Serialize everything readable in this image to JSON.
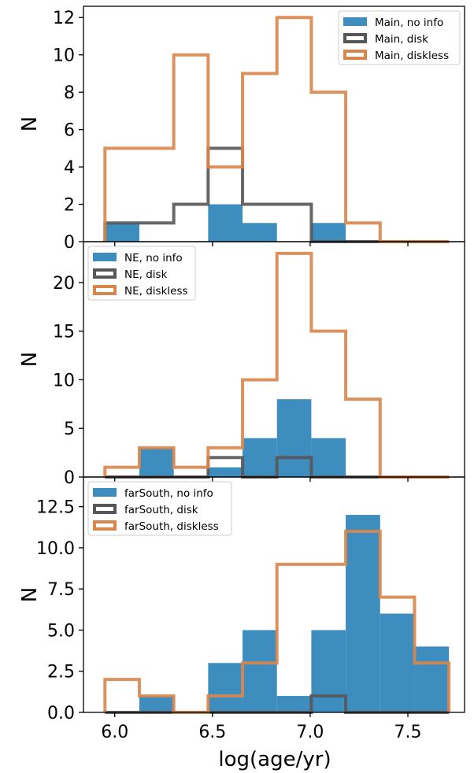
{
  "chart_data": {
    "type": "histogram",
    "xlabel": "log(age/yr)",
    "xlim": [
      5.84,
      7.79
    ],
    "xticks": [
      "6.0",
      "6.5",
      "7.0",
      "7.5"
    ],
    "bin_edges": [
      5.95,
      6.126,
      6.302,
      6.478,
      6.654,
      6.83,
      7.006,
      7.182,
      7.358,
      7.534,
      7.71
    ],
    "colors": {
      "no_info": "#3d8dbf",
      "disk": "#575757",
      "diskless": "#d9864c"
    },
    "panels": [
      {
        "ylabel": "N",
        "ylim": [
          0,
          12.6
        ],
        "yticks": [
          "0",
          "2",
          "4",
          "6",
          "8",
          "10",
          "12"
        ],
        "legend_position": "top-right",
        "series": [
          {
            "name": "Main, no info",
            "style": "filled",
            "values": [
              1,
              0,
              0,
              2,
              1,
              0,
              1,
              0,
              0,
              0
            ]
          },
          {
            "name": "Main, disk",
            "style": "step",
            "values": [
              1,
              1,
              2,
              5,
              2,
              2,
              0,
              0,
              0,
              0
            ]
          },
          {
            "name": "Main, diskless",
            "style": "step",
            "values": [
              5,
              5,
              10,
              4,
              9,
              12,
              8,
              1,
              0,
              0
            ]
          }
        ]
      },
      {
        "ylabel": "N",
        "ylim": [
          0,
          24.2
        ],
        "yticks": [
          "0",
          "5",
          "10",
          "15",
          "20"
        ],
        "legend_position": "top-left",
        "series": [
          {
            "name": "NE, no info",
            "style": "filled",
            "values": [
              0,
              3,
              0,
              1,
              4,
              8,
              4,
              0,
              0,
              0
            ]
          },
          {
            "name": "NE, disk",
            "style": "step",
            "values": [
              0,
              0,
              0,
              2,
              0,
              2,
              0,
              0,
              0,
              0
            ]
          },
          {
            "name": "NE, diskless",
            "style": "step",
            "values": [
              1,
              3,
              1,
              3,
              10,
              23,
              15,
              8,
              0,
              0
            ]
          }
        ]
      },
      {
        "ylabel": "N",
        "ylim": [
          0,
          14.3
        ],
        "yticks": [
          "0.0",
          "2.5",
          "5.0",
          "7.5",
          "10.0",
          "12.5"
        ],
        "legend_position": "top-left",
        "series": [
          {
            "name": "farSouth, no info",
            "style": "filled",
            "values": [
              0,
              1,
              0,
              3,
              5,
              1,
              5,
              12,
              6,
              4
            ]
          },
          {
            "name": "farSouth, disk",
            "style": "step",
            "values": [
              0,
              0,
              0,
              0,
              0,
              0,
              1,
              0,
              0,
              0
            ]
          },
          {
            "name": "farSouth, diskless",
            "style": "step",
            "values": [
              2,
              1,
              0,
              1,
              3,
              9,
              9,
              11,
              7,
              3
            ]
          }
        ]
      }
    ]
  }
}
